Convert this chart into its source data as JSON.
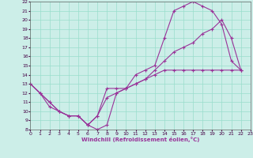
{
  "xlabel": "Windchill (Refroidissement éolien,°C)",
  "bg_color": "#cceee8",
  "grid_color": "#99ddcc",
  "line_color": "#993399",
  "xmin": 0,
  "xmax": 23,
  "ymin": 8,
  "ymax": 22,
  "yticks": [
    8,
    9,
    10,
    11,
    12,
    13,
    14,
    15,
    16,
    17,
    18,
    19,
    20,
    21,
    22
  ],
  "xticks": [
    0,
    1,
    2,
    3,
    4,
    5,
    6,
    7,
    8,
    9,
    10,
    11,
    12,
    13,
    14,
    15,
    16,
    17,
    18,
    19,
    20,
    21,
    22,
    23
  ],
  "line1_x": [
    0,
    1,
    2,
    3,
    4,
    5,
    6,
    7,
    8,
    9,
    10,
    11,
    12,
    13,
    14,
    15,
    16,
    17,
    18,
    19,
    20,
    21,
    22
  ],
  "line1_y": [
    13,
    12,
    10.5,
    10,
    9.5,
    9.5,
    8.5,
    8,
    8.5,
    12,
    12.5,
    14,
    14.5,
    15,
    18,
    21,
    21.5,
    22,
    21.5,
    21,
    19.5,
    15.5,
    14.5
  ],
  "line2_x": [
    0,
    1,
    2,
    3,
    4,
    5,
    6,
    7,
    8,
    9,
    10,
    11,
    12,
    13,
    14,
    15,
    16,
    17,
    18,
    19,
    20,
    21,
    22
  ],
  "line2_y": [
    13,
    12,
    11,
    10,
    9.5,
    9.5,
    8.5,
    9.5,
    12.5,
    12.5,
    12.5,
    13,
    13.5,
    14.5,
    15.5,
    16.5,
    17,
    17.5,
    18.5,
    19,
    20,
    18,
    14.5
  ],
  "line3_x": [
    0,
    1,
    2,
    3,
    4,
    5,
    6,
    7,
    8,
    9,
    10,
    11,
    12,
    13,
    14,
    15,
    16,
    17,
    18,
    19,
    20,
    21,
    22
  ],
  "line3_y": [
    13,
    12,
    11,
    10,
    9.5,
    9.5,
    8.5,
    9.5,
    11.5,
    12,
    12.5,
    13,
    13.5,
    14,
    14.5,
    14.5,
    14.5,
    14.5,
    14.5,
    14.5,
    14.5,
    14.5,
    14.5
  ]
}
